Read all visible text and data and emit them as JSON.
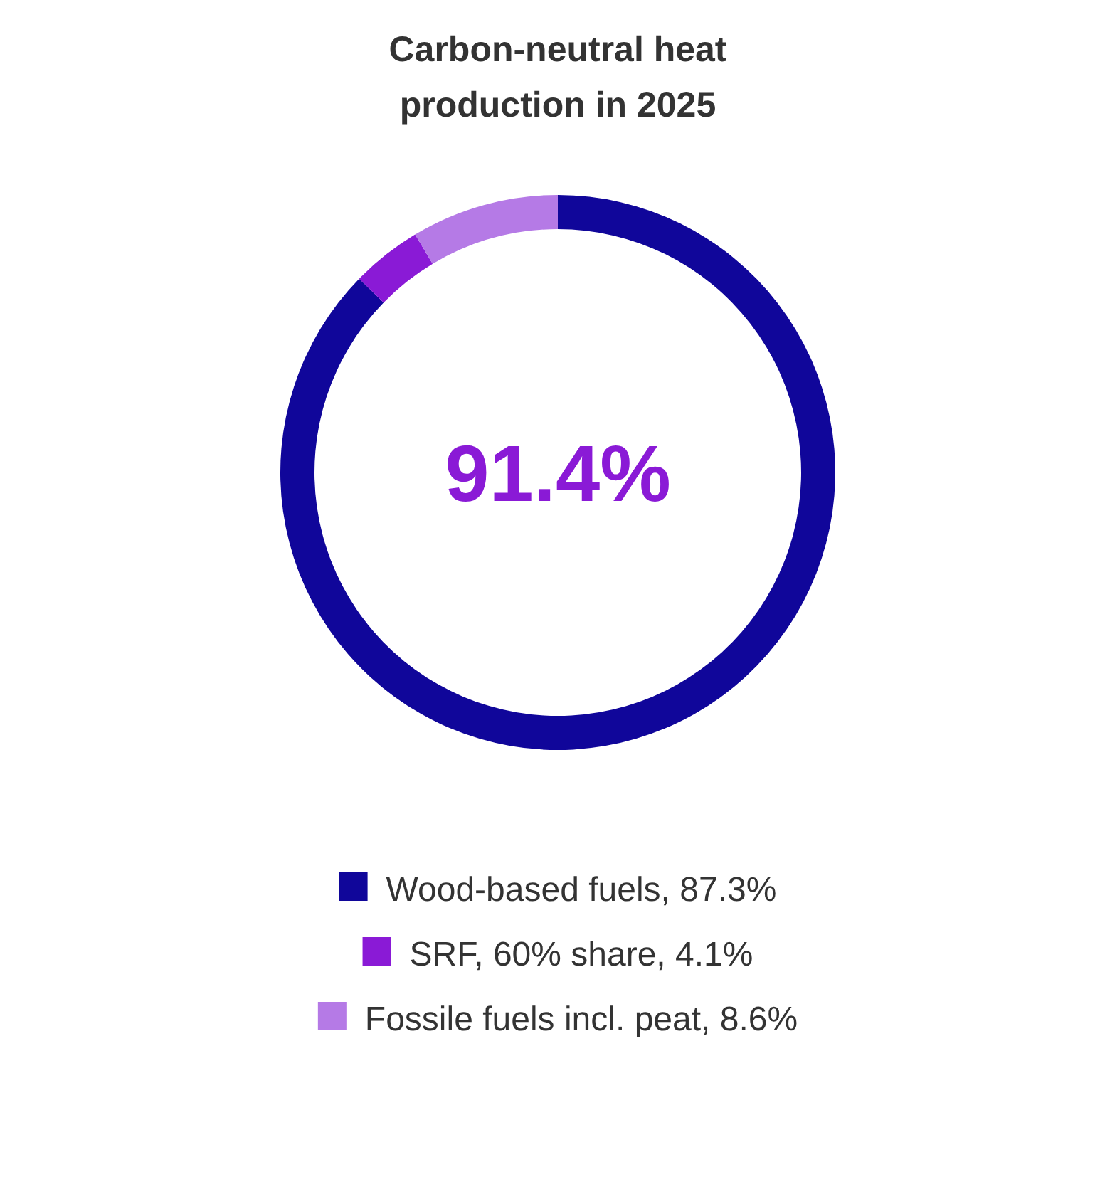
{
  "chart_data": {
    "type": "donut",
    "title": "Carbon-neutral heat\nproduction in 2025",
    "categories": [
      "Wood-based fuels, 87.3%",
      "SRF, 60% share, 4.1%",
      "Fossile fuels incl. peat, 8.6%"
    ],
    "values": [
      87.3,
      4.1,
      8.6
    ],
    "colors": [
      "#10069a",
      "#8a1ad6",
      "#b57ae6"
    ],
    "annotations": [
      "91.4%"
    ],
    "legend": "bottom"
  }
}
